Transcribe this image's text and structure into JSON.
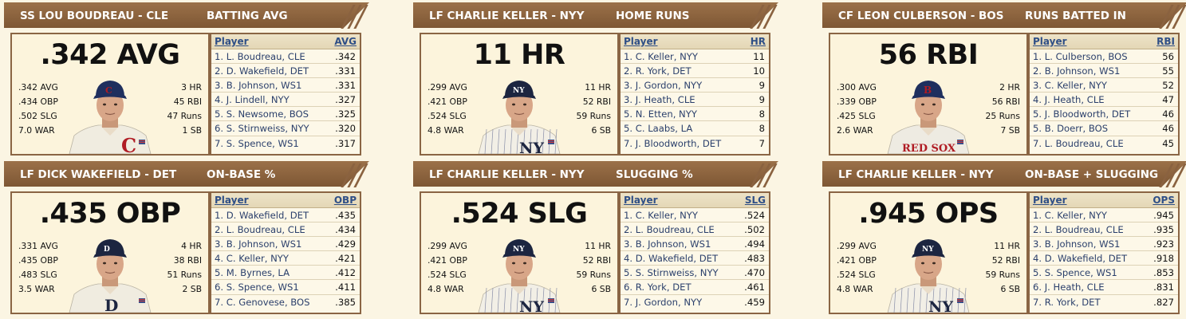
{
  "cards": [
    {
      "player": "SS LOU BOUDREAU - CLE",
      "category": "BATTING AVG",
      "big_stat": ".342 AVG",
      "left_stats": [
        ".342 AVG",
        ".434 OBP",
        ".502 SLG",
        "7.0 WAR"
      ],
      "right_stats": [
        "3 HR",
        "45 RBI",
        "47 Runs",
        "1 SB"
      ],
      "cap_color": "#1f2f5e",
      "jersey_color": "#f0ece0",
      "logo": "C",
      "logo_color": "#b01c24",
      "col_player": "Player",
      "col_val": "AVG",
      "leaders": [
        {
          "name": "1. L. Boudreau, CLE",
          "val": ".342"
        },
        {
          "name": "2. D. Wakefield, DET",
          "val": ".331"
        },
        {
          "name": "3. B. Johnson, WS1",
          "val": ".331"
        },
        {
          "name": "4. J. Lindell, NYY",
          "val": ".327"
        },
        {
          "name": "5. S. Newsome, BOS",
          "val": ".325"
        },
        {
          "name": "6. S. Stirnweiss, NYY",
          "val": ".320"
        },
        {
          "name": "7. S. Spence, WS1",
          "val": ".317"
        }
      ]
    },
    {
      "player": "LF CHARLIE KELLER - NYY",
      "category": "HOME RUNS",
      "big_stat": "11 HR",
      "left_stats": [
        ".299 AVG",
        ".421 OBP",
        ".524 SLG",
        "4.8 WAR"
      ],
      "right_stats": [
        "11 HR",
        "52 RBI",
        "59 Runs",
        "6 SB"
      ],
      "cap_color": "#1c2540",
      "jersey_color": "#f2efe6",
      "logo": "NY",
      "logo_color": "#1c2540",
      "col_player": "Player",
      "col_val": "HR",
      "leaders": [
        {
          "name": "1. C. Keller, NYY",
          "val": "11"
        },
        {
          "name": "2. R. York, DET",
          "val": "10"
        },
        {
          "name": "3. J. Gordon, NYY",
          "val": "9"
        },
        {
          "name": "3. J. Heath, CLE",
          "val": "9"
        },
        {
          "name": "5. N. Etten, NYY",
          "val": "8"
        },
        {
          "name": "5. C. Laabs, LA",
          "val": "8"
        },
        {
          "name": "7. J. Bloodworth, DET",
          "val": "7"
        }
      ]
    },
    {
      "player": "CF LEON CULBERSON - BOS",
      "category": "RUNS BATTED IN",
      "big_stat": "56 RBI",
      "left_stats": [
        ".300 AVG",
        ".339 OBP",
        ".425 SLG",
        "2.6 WAR"
      ],
      "right_stats": [
        "2 HR",
        "56 RBI",
        "25 Runs",
        "7 SB"
      ],
      "cap_color": "#1f2f5e",
      "jersey_color": "#eeebe2",
      "logo": "RED SOX",
      "logo_color": "#b01c24",
      "col_player": "Player",
      "col_val": "RBI",
      "leaders": [
        {
          "name": "1. L. Culberson, BOS",
          "val": "56"
        },
        {
          "name": "2. B. Johnson, WS1",
          "val": "55"
        },
        {
          "name": "3. C. Keller, NYY",
          "val": "52"
        },
        {
          "name": "4. J. Heath, CLE",
          "val": "47"
        },
        {
          "name": "5. J. Bloodworth, DET",
          "val": "46"
        },
        {
          "name": "5. B. Doerr, BOS",
          "val": "46"
        },
        {
          "name": "7. L. Boudreau, CLE",
          "val": "45"
        }
      ]
    },
    {
      "player": "LF DICK WAKEFIELD - DET",
      "category": "ON-BASE %",
      "big_stat": ".435 OBP",
      "left_stats": [
        ".331 AVG",
        ".435 OBP",
        ".483 SLG",
        "3.5 WAR"
      ],
      "right_stats": [
        "4 HR",
        "38 RBI",
        "51 Runs",
        "2 SB"
      ],
      "cap_color": "#1c2540",
      "jersey_color": "#f0ece0",
      "logo": "D",
      "logo_color": "#1c2540",
      "col_player": "Player",
      "col_val": "OBP",
      "leaders": [
        {
          "name": "1. D. Wakefield, DET",
          "val": ".435"
        },
        {
          "name": "2. L. Boudreau, CLE",
          "val": ".434"
        },
        {
          "name": "3. B. Johnson, WS1",
          "val": ".429"
        },
        {
          "name": "4. C. Keller, NYY",
          "val": ".421"
        },
        {
          "name": "5. M. Byrnes, LA",
          "val": ".412"
        },
        {
          "name": "6. S. Spence, WS1",
          "val": ".411"
        },
        {
          "name": "7. C. Genovese, BOS",
          "val": ".385"
        }
      ]
    },
    {
      "player": "LF CHARLIE KELLER - NYY",
      "category": "SLUGGING %",
      "big_stat": ".524 SLG",
      "left_stats": [
        ".299 AVG",
        ".421 OBP",
        ".524 SLG",
        "4.8 WAR"
      ],
      "right_stats": [
        "11 HR",
        "52 RBI",
        "59 Runs",
        "6 SB"
      ],
      "cap_color": "#1c2540",
      "jersey_color": "#f2efe6",
      "logo": "NY",
      "logo_color": "#1c2540",
      "col_player": "Player",
      "col_val": "SLG",
      "leaders": [
        {
          "name": "1. C. Keller, NYY",
          "val": ".524"
        },
        {
          "name": "2. L. Boudreau, CLE",
          "val": ".502"
        },
        {
          "name": "3. B. Johnson, WS1",
          "val": ".494"
        },
        {
          "name": "4. D. Wakefield, DET",
          "val": ".483"
        },
        {
          "name": "5. S. Stirnweiss, NYY",
          "val": ".470"
        },
        {
          "name": "6. R. York, DET",
          "val": ".461"
        },
        {
          "name": "7. J. Gordon, NYY",
          "val": ".459"
        }
      ]
    },
    {
      "player": "LF CHARLIE KELLER - NYY",
      "category": "ON-BASE + SLUGGING",
      "big_stat": ".945 OPS",
      "left_stats": [
        ".299 AVG",
        ".421 OBP",
        ".524 SLG",
        "4.8 WAR"
      ],
      "right_stats": [
        "11 HR",
        "52 RBI",
        "59 Runs",
        "6 SB"
      ],
      "cap_color": "#1c2540",
      "jersey_color": "#f2efe6",
      "logo": "NY",
      "logo_color": "#1c2540",
      "col_player": "Player",
      "col_val": "OPS",
      "leaders": [
        {
          "name": "1. C. Keller, NYY",
          "val": ".945"
        },
        {
          "name": "2. L. Boudreau, CLE",
          "val": ".935"
        },
        {
          "name": "3. B. Johnson, WS1",
          "val": ".923"
        },
        {
          "name": "4. D. Wakefield, DET",
          "val": ".918"
        },
        {
          "name": "5. S. Spence, WS1",
          "val": ".853"
        },
        {
          "name": "6. J. Heath, CLE",
          "val": ".831"
        },
        {
          "name": "7. R. York, DET",
          "val": ".827"
        }
      ]
    }
  ]
}
